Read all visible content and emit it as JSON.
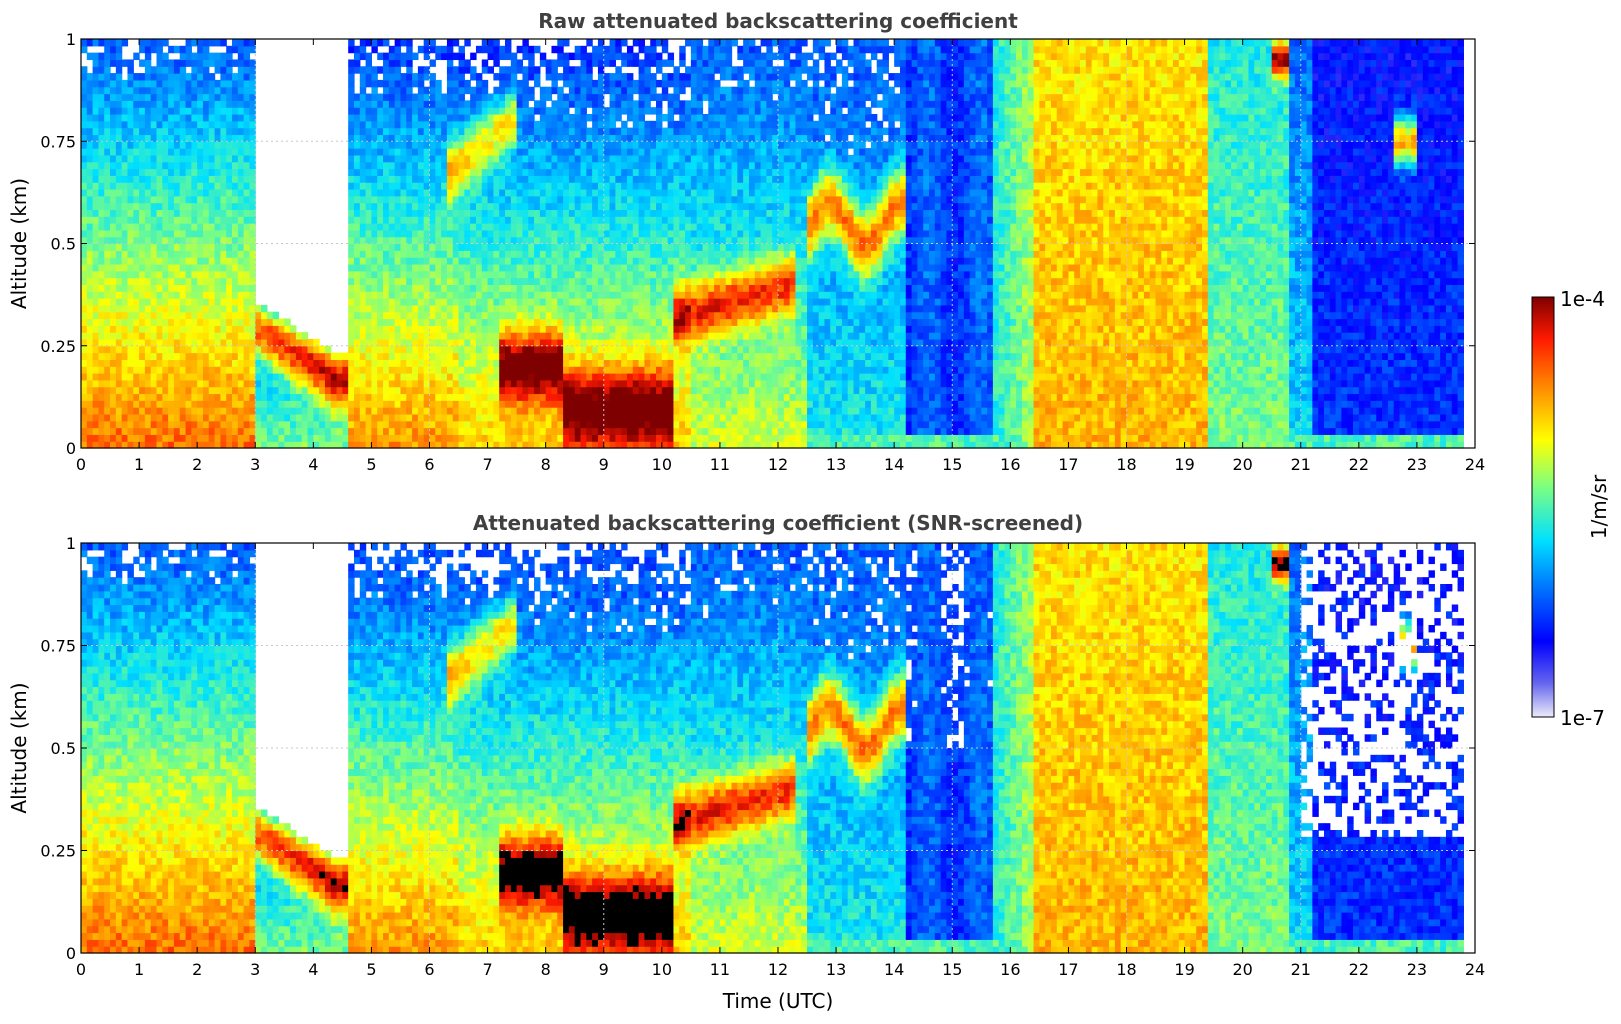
{
  "chart_data": [
    {
      "type": "heatmap",
      "title": "Raw attenuated backscattering coefficient",
      "xlabel": "",
      "ylabel": "Altitude (km)",
      "xlim": [
        0,
        24
      ],
      "ylim": [
        0,
        1
      ],
      "xticks": [
        "0",
        "1",
        "2",
        "3",
        "4",
        "5",
        "6",
        "7",
        "8",
        "9",
        "10",
        "11",
        "12",
        "13",
        "14",
        "15",
        "16",
        "17",
        "18",
        "19",
        "20",
        "21",
        "22",
        "23",
        "24"
      ],
      "yticks": [
        "0",
        "0.25",
        "0.5",
        "0.75",
        "1"
      ],
      "grid": true,
      "screened": false
    },
    {
      "type": "heatmap",
      "title": "Attenuated backscattering coefficient (SNR-screened)",
      "xlabel": "Time (UTC)",
      "ylabel": "Altitude (km)",
      "xlim": [
        0,
        24
      ],
      "ylim": [
        0,
        1
      ],
      "xticks": [
        "0",
        "1",
        "2",
        "3",
        "4",
        "5",
        "6",
        "7",
        "8",
        "9",
        "10",
        "11",
        "12",
        "13",
        "14",
        "15",
        "16",
        "17",
        "18",
        "19",
        "20",
        "21",
        "22",
        "23",
        "24"
      ],
      "yticks": [
        "0",
        "0.25",
        "0.5",
        "0.75",
        "1"
      ],
      "grid": true,
      "screened": true
    }
  ],
  "colorbar": {
    "label": "1/m/sr",
    "max_label": "1e-4",
    "min_label": "1e-7",
    "scale": "log",
    "colormap": "jet"
  },
  "colors": {
    "axis": "#000000",
    "grid": "#c8c8c8",
    "title": "#404040"
  }
}
